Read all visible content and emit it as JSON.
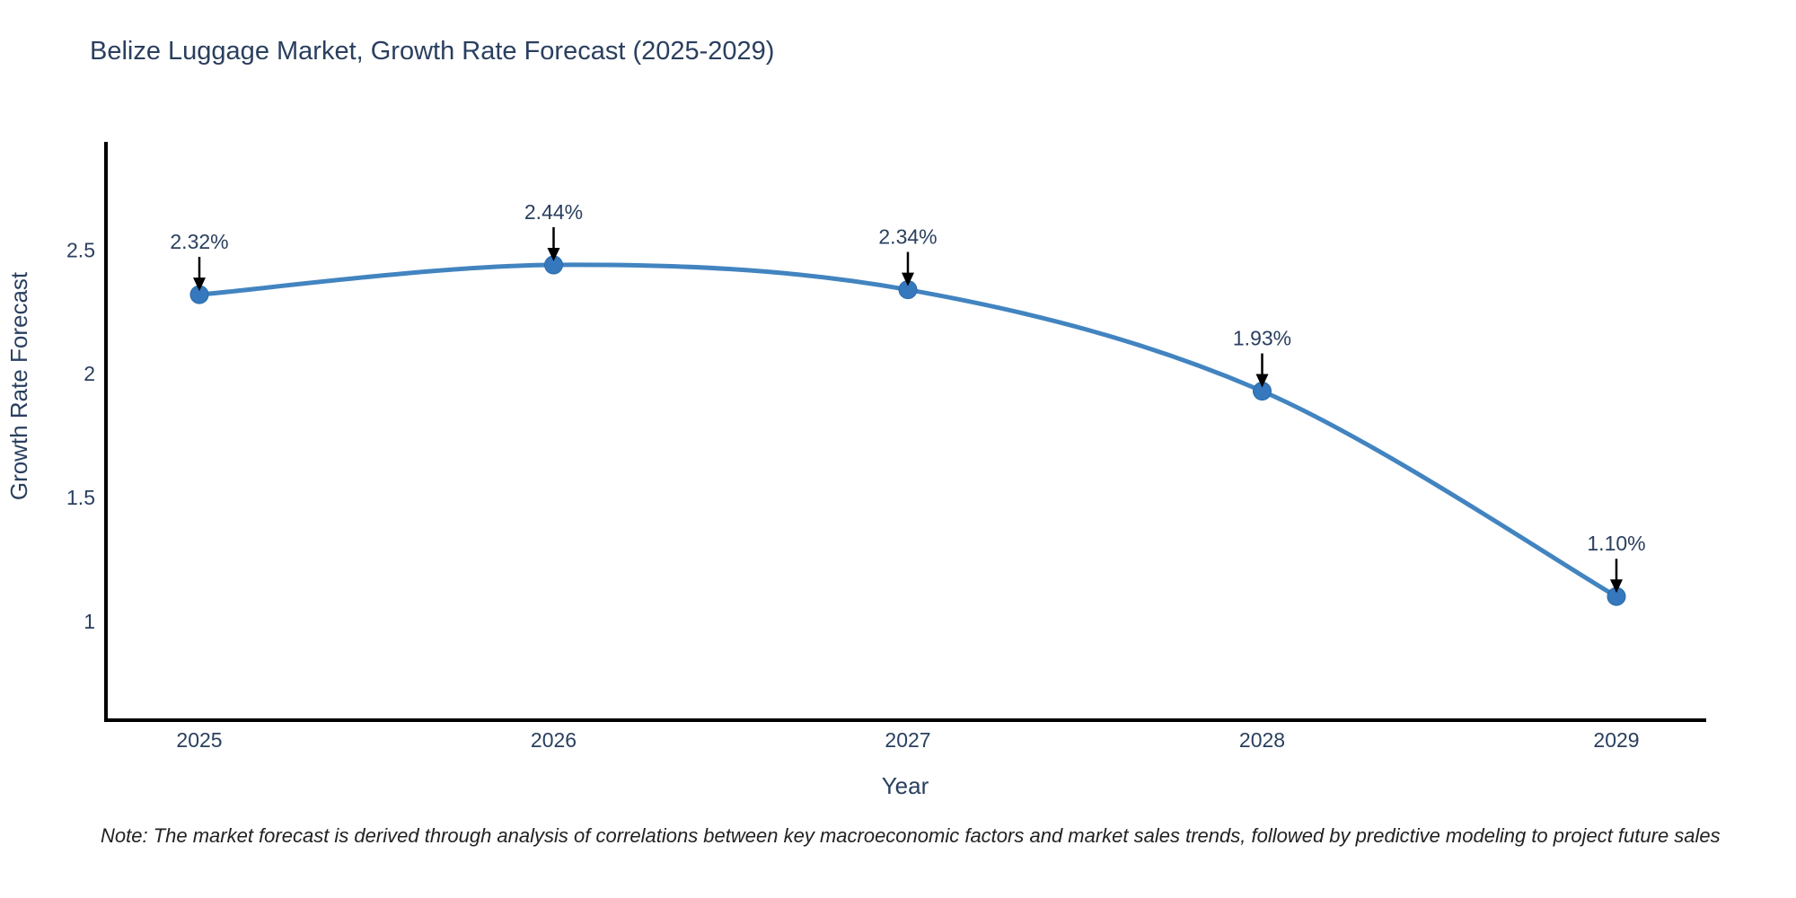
{
  "title": "Belize Luggage Market, Growth Rate Forecast (2025-2029)",
  "note": "Note: The market forecast is derived through analysis of correlations between key macroeconomic factors and market sales trends, followed by predictive modeling to project future sales",
  "colors": {
    "background": "#ffffff",
    "title_text": "#2a3f5f",
    "axis_text": "#2a3f5f",
    "tick_text": "#2a3f5f",
    "annotation_text": "#2a3f5f",
    "line": "#4284c0",
    "marker": "#3578be",
    "marker_edge": "#2b6aa8",
    "axis_line": "#000000",
    "arrow": "#000000",
    "note_text": "#222222"
  },
  "chart_data": {
    "type": "line",
    "title": "Belize Luggage Market, Growth Rate Forecast (2025-2029)",
    "xlabel": "Year",
    "ylabel": "Growth Rate Forecast",
    "x": [
      2025,
      2026,
      2027,
      2028,
      2029
    ],
    "values": [
      2.32,
      2.44,
      2.34,
      1.93,
      1.1
    ],
    "point_labels": [
      "2.32%",
      "2.44%",
      "2.34%",
      "1.93%",
      "1.10%"
    ],
    "x_tick_labels": [
      "2025",
      "2026",
      "2027",
      "2028",
      "2029"
    ],
    "y_ticks": [
      2.5,
      2.0,
      1.5,
      1.0
    ],
    "y_tick_labels": [
      "2.5",
      "2",
      "1.5",
      "1"
    ],
    "ylim": [
      0.6,
      2.93
    ],
    "line_shape": "spline",
    "markers": true,
    "grid": false,
    "legend": "none"
  }
}
